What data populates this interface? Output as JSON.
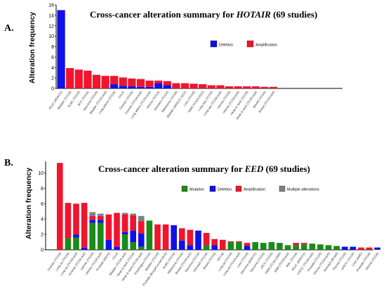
{
  "colors": {
    "mutation": "#1a8a1a",
    "deletion": "#1010e8",
    "amplification": "#f0142c",
    "multiple": "#808080",
    "axis": "#000000"
  },
  "chart_data": [
    {
      "type": "bar",
      "panel_label": "A.",
      "title_prefix": "Cross-cancer alteration summary for ",
      "title_gene": "HOTAIR",
      "title_suffix": " (69 studies)",
      "ylabel": "Alteration frequency",
      "ylim": [
        0,
        16
      ],
      "yticks": [
        "0",
        "2",
        "4",
        "6",
        "8",
        "10",
        "12",
        "14",
        "16"
      ],
      "grid": false,
      "legend_position": "top-right",
      "legend": [
        {
          "key": "deletion",
          "label": "Deletion"
        },
        {
          "key": "amplification",
          "label": "Amplification"
        }
      ],
      "categories": [
        "ACyC (MSKCC)",
        "Bladder (TCGA)",
        "DLBC (TCGA)",
        "ACC (TCGA)",
        "Sarcoma (TCGA)",
        "Bladder (TCGA pub)",
        "Lung adeno (TCGA)",
        "CCLE",
        "Ovarian (TCGA)",
        "Ovarian (TCGA pub)",
        "Lung adeno (TCGA pub)",
        "Glioma (TCGA)",
        "Stomach (TCGA)",
        "Melanoma (TCGA)",
        "Bladder (MSKCC 2012)",
        "Liver (TCGA)",
        "GBM (TCGA 2013)",
        "Lung squ (TCGA)",
        "Lung squ (TCGA pub)",
        "Uterine (TCGA)",
        "Uterine (TCGA pub)",
        "Head & neck (TCGA)",
        "Head & neck (TCGA pub)",
        "Breast (TCGA)",
        "Breast (TCGA pub)"
      ],
      "series": [
        {
          "key": "deletion",
          "values": [
            15.0,
            0,
            0,
            0,
            0,
            0,
            0.8,
            0.5,
            0.4,
            0.3,
            0.3,
            1.0,
            0.6,
            0,
            0,
            0,
            0,
            0,
            0,
            0,
            0,
            0,
            0,
            0,
            0
          ]
        },
        {
          "key": "amplification",
          "values": [
            0,
            3.9,
            3.6,
            3.4,
            2.6,
            2.4,
            1.6,
            1.6,
            1.5,
            1.5,
            1.2,
            0.5,
            0.8,
            1.0,
            1.0,
            0.9,
            0.8,
            0.6,
            0.6,
            0.4,
            0.4,
            0.4,
            0.4,
            0.3,
            0.3
          ]
        }
      ]
    },
    {
      "type": "bar",
      "panel_label": "B.",
      "title_prefix": "Cross-cancer alteration summary for ",
      "title_gene": "EED",
      "title_suffix": " (69 studies)",
      "ylabel": "Alteration frequency",
      "ylim": [
        0,
        11.5
      ],
      "yticks": [
        "0",
        "2",
        "4",
        "6",
        "8",
        "10"
      ],
      "grid": false,
      "legend_position": "top-right",
      "legend": [
        {
          "key": "mutation",
          "label": "Mutation"
        },
        {
          "key": "deletion",
          "label": "Deletion"
        },
        {
          "key": "amplification",
          "label": "Amplification"
        },
        {
          "key": "multiple",
          "label": "Multiple alterations"
        }
      ],
      "categories": [
        "Ovarian (TCGA)",
        "Lung sq (TCGA)",
        "Lung sq (TCGA pub)",
        "Ovarian (TCGA pub)",
        "Uterine (TCGA)",
        "Uterine (TCGA pub)",
        "Prostate (MICH)",
        "CCLE",
        "Bladder (TCGA pub)",
        "Head & neck (TCGA)",
        "Head & neck (TCGA pub)",
        "Esophagus (TCGA)",
        "Bladder (TCGA)",
        "Prostate (Broad/Cornell 2012)",
        "DLBC (TCGA)",
        "Melanoma (TCGA)",
        "Breast (TCGA pub)",
        "Sarcoma (TCGA)",
        "Stomach (TCGA)",
        "Breast (TCGA)",
        "NCI-60",
        "Lung ad (TCGA)",
        "Lung ad (TCGA pub)",
        "Liver (TCGA)",
        "Sarcoma (MSKCC)",
        "Sarcoma (TCGA)",
        "cRCC (TCGA)",
        "GBM (TCGA 2008)",
        "GBM (TCGA pub)",
        "AML (TCGA)",
        "ACyC (MSKCC)",
        "ccRCC (TCGA pub)",
        "Prostate (TCGA)",
        "Glioma (TCGA pub)",
        "Stomach (Broad)",
        "Thyroid (TCGA)",
        "ccRCC (TCGA)",
        "Liver (AMC)",
        "Prostate (TCGA)",
        "Glioma (TCGA)"
      ],
      "series": [
        {
          "key": "mutation",
          "values": [
            0,
            1.5,
            1.6,
            0,
            3.5,
            3.5,
            0,
            0,
            2.0,
            1.0,
            0.4,
            3.8,
            0,
            0,
            0,
            0,
            0,
            0,
            0.6,
            0,
            0,
            1.0,
            1.0,
            0,
            1.0,
            0.9,
            1.0,
            0.9,
            0.6,
            0.6,
            0.7,
            0.8,
            0.7,
            0.6,
            0.5,
            0,
            0,
            0,
            0,
            0
          ]
        },
        {
          "key": "deletion",
          "values": [
            0,
            0,
            0.4,
            0.3,
            0.4,
            0.4,
            1.3,
            0.4,
            0.3,
            1.5,
            1.7,
            0,
            0,
            0,
            3.2,
            1.2,
            0.6,
            2.5,
            0,
            0.6,
            0,
            0,
            0,
            0.5,
            0,
            0,
            0,
            0,
            0,
            0,
            0,
            0,
            0,
            0,
            0,
            0.4,
            0.4,
            0,
            0,
            0.3
          ]
        },
        {
          "key": "amplification",
          "values": [
            11.3,
            4.6,
            4.0,
            5.8,
            0.5,
            0.5,
            3.3,
            4.4,
            2.3,
            2.0,
            1.6,
            0,
            3.3,
            3.3,
            0,
            1.6,
            2.0,
            0,
            1.6,
            0.8,
            1.3,
            0.1,
            0.1,
            0.4,
            0,
            0,
            0,
            0,
            0,
            0.3,
            0.2,
            0,
            0,
            0,
            0,
            0,
            0,
            0.3,
            0.3,
            0
          ]
        },
        {
          "key": "multiple",
          "values": [
            0,
            0,
            0,
            0,
            0.5,
            0.3,
            0,
            0,
            0.2,
            0.2,
            0.7,
            0,
            0,
            0,
            0,
            0,
            0,
            0,
            0,
            0,
            0,
            0,
            0,
            0,
            0,
            0,
            0,
            0,
            0,
            0,
            0,
            0,
            0,
            0,
            0,
            0,
            0,
            0,
            0,
            0
          ]
        }
      ]
    }
  ]
}
